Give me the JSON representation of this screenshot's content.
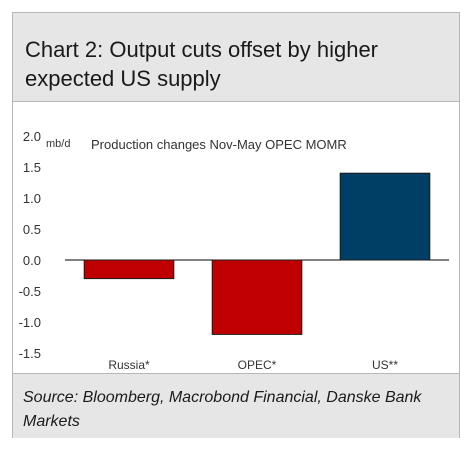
{
  "header": {
    "title": "Chart 2: Output cuts offset by higher expected US supply"
  },
  "source": "Source: Bloomberg, Macrobond Financial, Danske Bank Markets",
  "chart_data": {
    "type": "bar",
    "title": "Production changes Nov-May OPEC MOMR",
    "unit_label": "mb/d",
    "categories": [
      "Russia*",
      "OPEC*",
      "US**"
    ],
    "values": [
      -0.3,
      -1.2,
      1.4
    ],
    "colors": [
      "#c00000",
      "#c00000",
      "#003f65"
    ],
    "ylim": [
      -1.5,
      2.0
    ],
    "yticks": [
      "2.0",
      "1.5",
      "1.0",
      "0.5",
      "0.0",
      "-0.5",
      "-1.0",
      "-1.5"
    ],
    "grid": false
  }
}
